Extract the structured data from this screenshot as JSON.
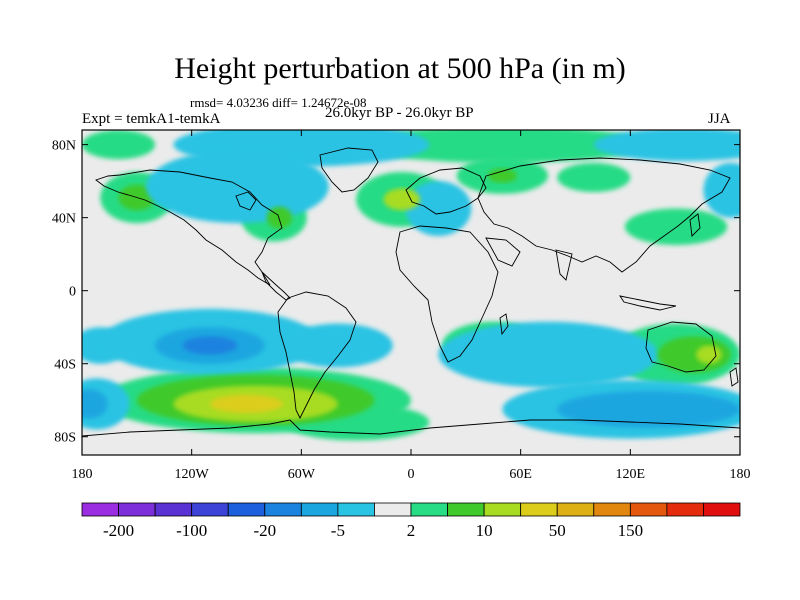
{
  "title": "Height perturbation at 500 hPa (in m)",
  "stats_text": "rmsd= 4.03236 diff= 1.24672e-08",
  "experiment": "Expt = temkA1-temkA",
  "period": "26.0kyr BP - 26.0kyr BP",
  "season": "JJA",
  "latitude_ticks": [
    {
      "value": 80,
      "label": "80N"
    },
    {
      "value": 40,
      "label": "40N"
    },
    {
      "value": 0,
      "label": "0"
    },
    {
      "value": -40,
      "label": "40S"
    },
    {
      "value": -80,
      "label": "80S"
    }
  ],
  "longitude_ticks": [
    {
      "value": -180,
      "label": "180"
    },
    {
      "value": -120,
      "label": "120W"
    },
    {
      "value": -60,
      "label": "60W"
    },
    {
      "value": 0,
      "label": "0"
    },
    {
      "value": 60,
      "label": "60E"
    },
    {
      "value": 120,
      "label": "120E"
    },
    {
      "value": 180,
      "label": "180"
    }
  ],
  "colorbar": {
    "colors": [
      "#9a2ee0",
      "#7d2fd9",
      "#5a32d3",
      "#3d43d6",
      "#1c60dd",
      "#1a82df",
      "#1ba6e0",
      "#29c3e3",
      "#ebebeb",
      "#28db85",
      "#3fc92a",
      "#a7dc22",
      "#dccd1b",
      "#ddb016",
      "#e1860f",
      "#e3580d",
      "#e42b0b",
      "#e10e0e"
    ],
    "labels": [
      {
        "boundary": 1,
        "text": "-200"
      },
      {
        "boundary": 3,
        "text": "-100"
      },
      {
        "boundary": 5,
        "text": "-20"
      },
      {
        "boundary": 7,
        "text": "-5"
      },
      {
        "boundary": 9,
        "text": "2"
      },
      {
        "boundary": 11,
        "text": "10"
      },
      {
        "boundary": 13,
        "text": "50"
      },
      {
        "boundary": 15,
        "text": "150"
      }
    ]
  },
  "anomaly_regions": [
    {
      "lon": -60,
      "lat": 80,
      "rlon": 70,
      "rlat": 12,
      "level": 7
    },
    {
      "lon": 50,
      "lat": 80,
      "rlon": 80,
      "rlat": 10,
      "level": 9
    },
    {
      "lon": 150,
      "lat": 80,
      "rlon": 50,
      "rlat": 9,
      "level": 7
    },
    {
      "lon": -160,
      "lat": 80,
      "rlon": 20,
      "rlat": 8,
      "level": 9
    },
    {
      "lon": -150,
      "lat": 51,
      "rlon": 20,
      "rlat": 14,
      "level": 9
    },
    {
      "lon": -150,
      "lat": 51,
      "rlon": 10,
      "rlat": 7,
      "level": 10
    },
    {
      "lon": -95,
      "lat": 57,
      "rlon": 50,
      "rlat": 20,
      "level": 7
    },
    {
      "lon": -75,
      "lat": 40,
      "rlon": 18,
      "rlat": 13,
      "level": 9
    },
    {
      "lon": -72,
      "lat": 40,
      "rlon": 7,
      "rlat": 6,
      "level": 10
    },
    {
      "lon": -5,
      "lat": 50,
      "rlon": 25,
      "rlat": 15,
      "level": 9
    },
    {
      "lon": -5,
      "lat": 50,
      "rlon": 10,
      "rlat": 6,
      "level": 11
    },
    {
      "lon": 15,
      "lat": 45,
      "rlon": 18,
      "rlat": 15,
      "level": 7
    },
    {
      "lon": 50,
      "lat": 63,
      "rlon": 25,
      "rlat": 10,
      "level": 9
    },
    {
      "lon": 50,
      "lat": 63,
      "rlon": 8,
      "rlat": 4,
      "level": 10
    },
    {
      "lon": 100,
      "lat": 62,
      "rlon": 20,
      "rlat": 8,
      "level": 9
    },
    {
      "lon": 145,
      "lat": 35,
      "rlon": 28,
      "rlat": 10,
      "level": 9
    },
    {
      "lon": 175,
      "lat": 55,
      "rlon": 15,
      "rlat": 15,
      "level": 7
    },
    {
      "lon": -170,
      "lat": -30,
      "rlon": 15,
      "rlat": 10,
      "level": 7
    },
    {
      "lon": -110,
      "lat": -28,
      "rlon": 60,
      "rlat": 18,
      "level": 7
    },
    {
      "lon": -110,
      "lat": -30,
      "rlon": 30,
      "rlat": 10,
      "level": 6
    },
    {
      "lon": -110,
      "lat": -30,
      "rlon": 15,
      "rlat": 5,
      "level": 5
    },
    {
      "lon": -40,
      "lat": -30,
      "rlon": 30,
      "rlat": 12,
      "level": 7
    },
    {
      "lon": 75,
      "lat": -35,
      "rlon": 60,
      "rlat": 18,
      "level": 7
    },
    {
      "lon": 45,
      "lat": -30,
      "rlon": 28,
      "rlat": 13,
      "level": 9
    },
    {
      "lon": 145,
      "lat": -35,
      "rlon": 35,
      "rlat": 17,
      "level": 9
    },
    {
      "lon": 155,
      "lat": -35,
      "rlon": 20,
      "rlat": 10,
      "level": 10
    },
    {
      "lon": 163,
      "lat": -35,
      "rlon": 7,
      "rlat": 5,
      "level": 11
    },
    {
      "lon": -85,
      "lat": -60,
      "rlon": 85,
      "rlat": 18,
      "level": 9
    },
    {
      "lon": -85,
      "lat": -60,
      "rlon": 65,
      "rlat": 14,
      "level": 10
    },
    {
      "lon": -85,
      "lat": -62,
      "rlon": 45,
      "rlat": 10,
      "level": 11
    },
    {
      "lon": -90,
      "lat": -62,
      "rlon": 20,
      "rlat": 5,
      "level": 12
    },
    {
      "lon": -30,
      "lat": -72,
      "rlon": 40,
      "rlat": 10,
      "level": 9
    },
    {
      "lon": -172,
      "lat": -62,
      "rlon": 18,
      "rlat": 14,
      "level": 7
    },
    {
      "lon": -176,
      "lat": -62,
      "rlon": 10,
      "rlat": 8,
      "level": 6
    },
    {
      "lon": 120,
      "lat": -65,
      "rlon": 70,
      "rlat": 16,
      "level": 7
    },
    {
      "lon": 130,
      "lat": -65,
      "rlon": 50,
      "rlat": 10,
      "level": 6
    }
  ]
}
